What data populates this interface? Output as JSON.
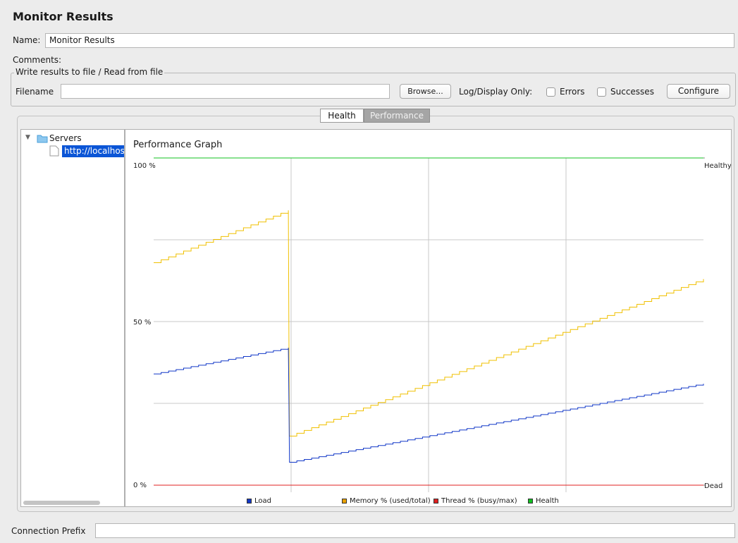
{
  "window": {
    "title": "Monitor Results"
  },
  "form": {
    "name_label": "Name:",
    "name_value": "Monitor Results",
    "comments_label": "Comments:"
  },
  "file_section": {
    "title": "Write results to file / Read from file",
    "filename_label": "Filename",
    "filename_value": "",
    "browse_label": "Browse...",
    "log_display_label": "Log/Display Only:",
    "errors_label": "Errors",
    "errors_checked": false,
    "successes_label": "Successes",
    "successes_checked": false,
    "configure_label": "Configure"
  },
  "tabs": [
    {
      "label": "Health",
      "selected": false
    },
    {
      "label": "Performance",
      "selected": true
    }
  ],
  "tree": {
    "root_label": "Servers",
    "items": [
      {
        "label": "http://localhos",
        "selected": true
      }
    ]
  },
  "graph": {
    "title": "Performance Graph",
    "y_top_label": "100 %",
    "y_mid_label": "50 %",
    "y_bottom_label": "0 %",
    "right_top_label": "Healthy",
    "right_bottom_label": "Dead",
    "legend": [
      {
        "label": "Load",
        "color": "#1238c8"
      },
      {
        "label": "Memory % (used/total)",
        "color": "#e8a000"
      },
      {
        "label": "Thread % (busy/max)",
        "color": "#e02020"
      },
      {
        "label": "Health",
        "color": "#10c020"
      }
    ]
  },
  "chart_data": {
    "type": "line",
    "title": "Performance Graph",
    "ylim": [
      0,
      100
    ],
    "grid": true,
    "legend_position": "bottom",
    "series": [
      {
        "name": "Memory % (used/total)",
        "color": "#f0c000",
        "points": [
          [
            0,
            68
          ],
          [
            24.5,
            84
          ],
          [
            24.6,
            45
          ],
          [
            24.7,
            15
          ],
          [
            100,
            63
          ]
        ]
      },
      {
        "name": "Load",
        "color": "#1238c8",
        "points": [
          [
            0,
            34
          ],
          [
            24.5,
            42
          ],
          [
            24.6,
            26
          ],
          [
            24.7,
            7
          ],
          [
            100,
            31
          ]
        ]
      },
      {
        "name": "Thread % (busy/max)",
        "color": "#e02020",
        "points": [
          [
            0,
            0
          ],
          [
            100,
            0
          ]
        ]
      },
      {
        "name": "Health",
        "color": "#10c020",
        "points": [
          [
            0,
            100
          ],
          [
            100,
            100
          ]
        ]
      }
    ]
  },
  "bottom": {
    "connection_prefix_label": "Connection Prefix",
    "connection_prefix_value": ""
  }
}
